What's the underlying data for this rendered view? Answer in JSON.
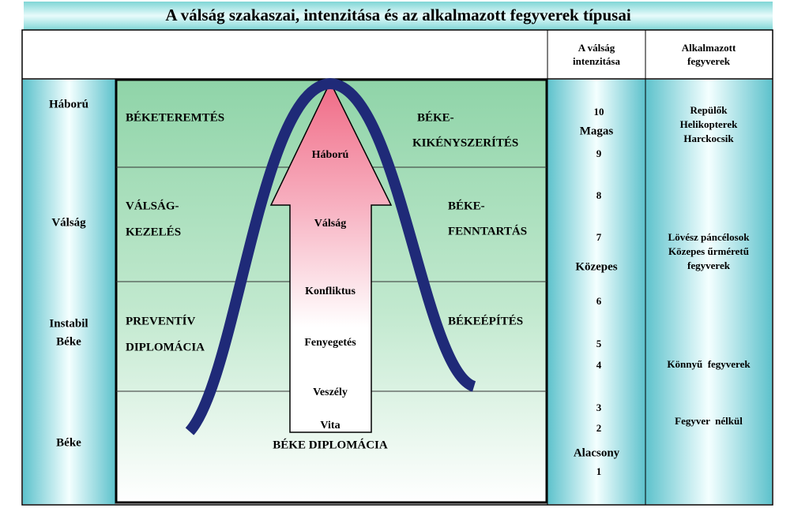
{
  "title": "A válság szakaszai, intenzitása és az alkalmazott fegyverek típusai",
  "header": {
    "intensity": [
      "A válság",
      "intenzitása"
    ],
    "weapons": [
      "Alkalmazott",
      "fegyverek"
    ]
  },
  "stages": [
    [
      "Háború"
    ],
    [
      "Válság"
    ],
    [
      "Instabil",
      "Béke"
    ],
    [
      "Béke"
    ]
  ],
  "left_activities": [
    [
      "BÉKETEREMTÉS"
    ],
    [
      "VÁLSÁG-",
      "KEZELÉS"
    ],
    [
      "PREVENTÍV",
      "DIPLOMÁCIA"
    ]
  ],
  "right_activities": [
    [
      "BÉKE-",
      "KIKÉNYSZERÍTÉS"
    ],
    [
      "BÉKE-",
      "FENNTARTÁS"
    ],
    [
      "BÉKEÉPÍTÉS"
    ]
  ],
  "arrow_labels": [
    "Háború",
    "Válság",
    "Konfliktus",
    "Fenyegetés",
    "Veszély",
    "Vita"
  ],
  "bottom_label": "BÉKE DIPLOMÁCIA",
  "scale": [
    10,
    9,
    8,
    7,
    6,
    5,
    4,
    3,
    2,
    1
  ],
  "levels": [
    "Magas",
    "Közepes",
    "Alacsony"
  ],
  "weapons": [
    [
      "Repülők",
      "Helikopterek",
      "Harckocsik"
    ],
    [
      "Lövész páncélosok",
      "Közepes űrméretű",
      "fegyverek"
    ],
    [
      "Könnyű  fegyverek"
    ],
    [
      "Fegyver  nélkül"
    ]
  ]
}
